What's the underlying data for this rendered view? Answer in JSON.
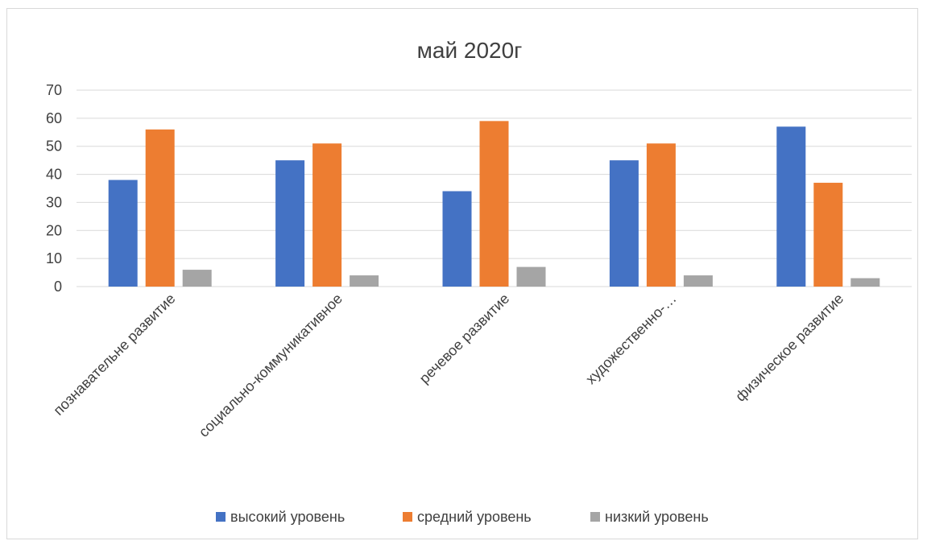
{
  "chart_data": {
    "type": "bar",
    "title": "май 2020г",
    "categories": [
      "познавательне развитие",
      "социально-коммуникативное",
      "речевое развитие",
      "художественно-…",
      "физическое развитие"
    ],
    "series": [
      {
        "name": "высокий уровень",
        "color": "#4472C4",
        "values": [
          38,
          45,
          34,
          45,
          57
        ]
      },
      {
        "name": "средний уровень",
        "color": "#ED7D31",
        "values": [
          56,
          51,
          59,
          51,
          37
        ]
      },
      {
        "name": "низкий уровень",
        "color": "#A5A5A5",
        "values": [
          6,
          4,
          7,
          4,
          3
        ]
      }
    ],
    "ylim": [
      0,
      70
    ],
    "yticks": [
      0,
      10,
      20,
      30,
      40,
      50,
      60,
      70
    ],
    "grid": true,
    "legend_position": "bottom"
  }
}
